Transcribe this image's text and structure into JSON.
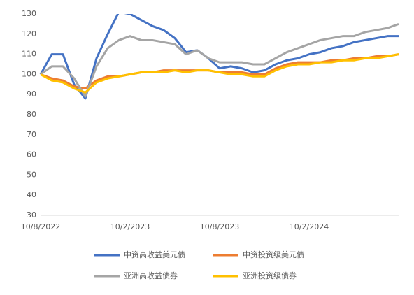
{
  "chart_data": {
    "type": "line",
    "categories": [
      "10/8/2022",
      null,
      null,
      null,
      null,
      null,
      null,
      null,
      "10/2/2023",
      null,
      null,
      null,
      null,
      null,
      null,
      null,
      "10/8/2023",
      null,
      null,
      null,
      null,
      null,
      null,
      null,
      "10/2/2024",
      null,
      null,
      null,
      null,
      null,
      null,
      null,
      null
    ],
    "series": [
      {
        "name": "中资高收益美元债",
        "color": "#4472c4",
        "values": [
          100,
          110,
          110,
          95,
          88,
          108,
          120,
          131,
          130,
          127,
          124,
          122,
          118,
          111,
          112,
          108,
          103,
          104,
          103,
          101,
          102,
          105,
          107,
          108,
          110,
          111,
          113,
          114,
          116,
          117,
          118,
          119,
          119
        ]
      },
      {
        "name": "中资投资级美元债",
        "color": "#ed7d31",
        "values": [
          100,
          98,
          97,
          94,
          93,
          97,
          99,
          99,
          100,
          101,
          101,
          102,
          102,
          102,
          102,
          102,
          101,
          101,
          101,
          100,
          100,
          103,
          105,
          106,
          106,
          106,
          107,
          107,
          108,
          108,
          109,
          109,
          110
        ]
      },
      {
        "name": "亚洲高收益债券",
        "color": "#a5a5a5",
        "values": [
          100,
          104,
          104,
          98,
          89,
          104,
          113,
          117,
          119,
          117,
          117,
          116,
          115,
          110,
          112,
          108,
          106,
          106,
          106,
          105,
          105,
          108,
          111,
          113,
          115,
          117,
          118,
          119,
          119,
          121,
          122,
          123,
          125
        ]
      },
      {
        "name": "亚洲投资级债券",
        "color": "#ffc000",
        "values": [
          100,
          97,
          96,
          93,
          91,
          96,
          98,
          99,
          100,
          101,
          101,
          101,
          102,
          101,
          102,
          102,
          101,
          100,
          100,
          99,
          99,
          102,
          104,
          105,
          105,
          106,
          106,
          107,
          107,
          108,
          108,
          109,
          110
        ]
      }
    ],
    "ylim": [
      30,
      130
    ],
    "yticks": [
      30,
      40,
      50,
      60,
      70,
      80,
      90,
      100,
      110,
      120,
      130
    ],
    "grid": false
  }
}
